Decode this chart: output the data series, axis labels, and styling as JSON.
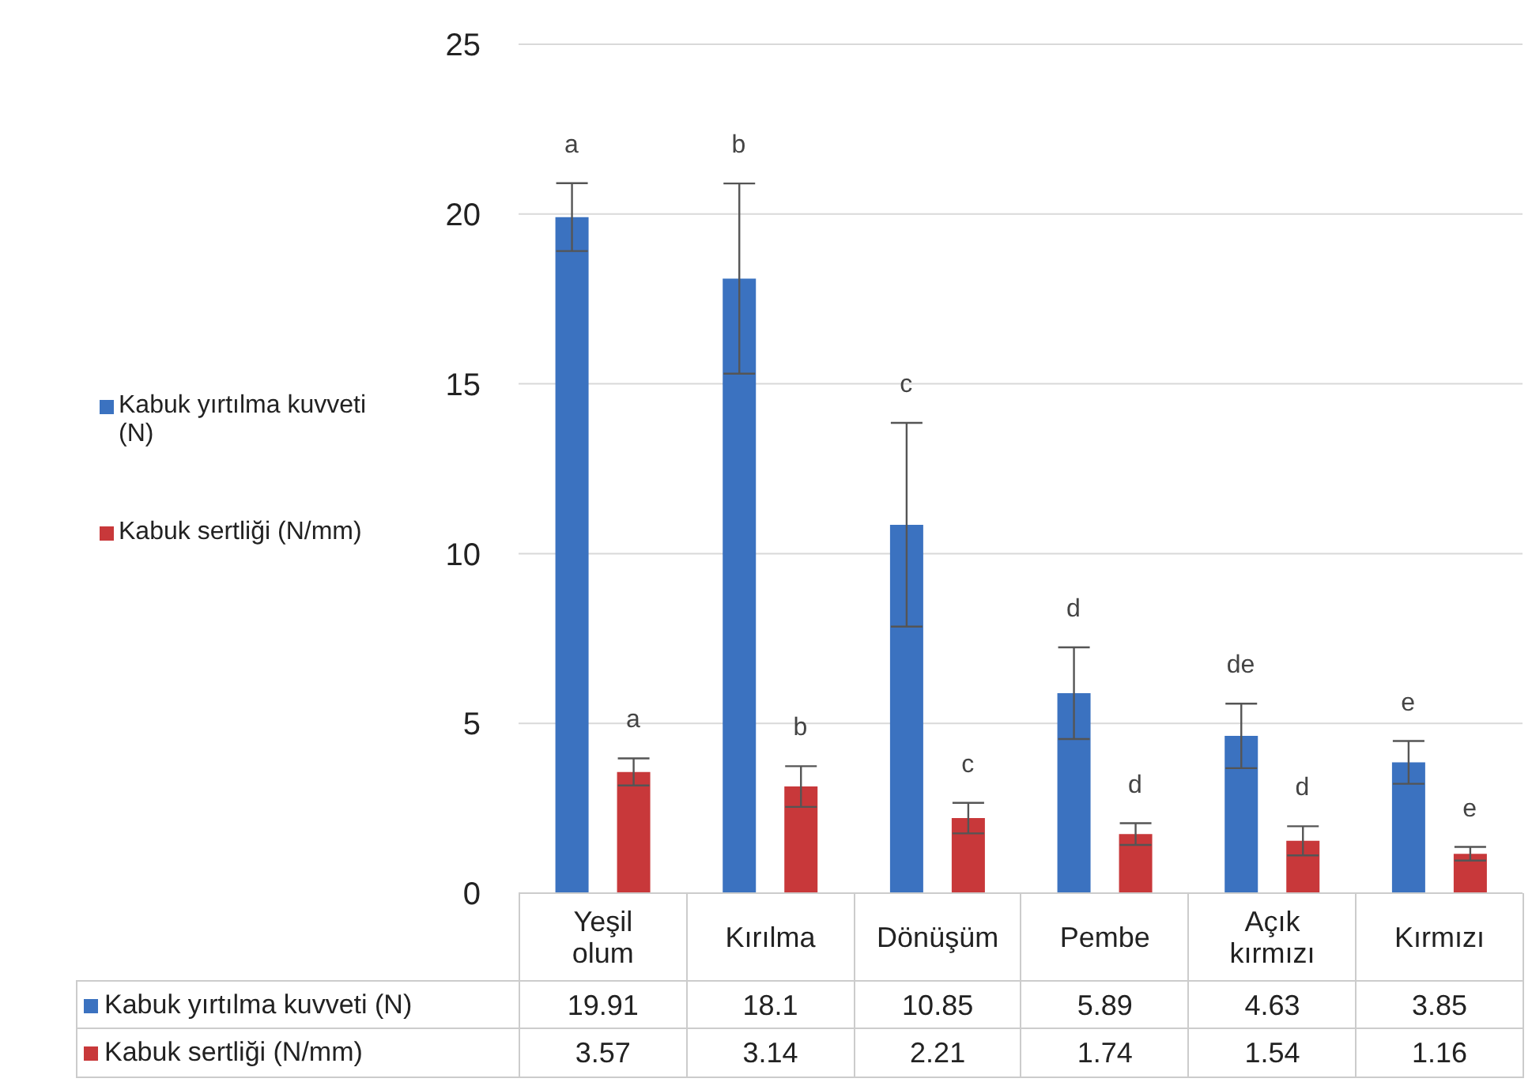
{
  "chart_data": {
    "type": "bar",
    "categories": [
      "Yeşil olum",
      "Kırılma",
      "Dönüşüm",
      "Pembe",
      "Açık kırmızı",
      "Kırmızı"
    ],
    "series": [
      {
        "name": "Kabuk yırtılma kuvveti (N)",
        "color": "#3b72c0",
        "values": [
          19.91,
          18.1,
          10.85,
          5.89,
          4.63,
          3.85
        ],
        "errors": [
          1.0,
          2.8,
          3.0,
          1.35,
          0.95,
          0.63
        ]
      },
      {
        "name": "Kabuk sertliği (N/mm)",
        "color": "#c8383a",
        "values": [
          3.57,
          3.14,
          2.21,
          1.74,
          1.54,
          1.16
        ],
        "errors": [
          0.4,
          0.6,
          0.45,
          0.32,
          0.43,
          0.2
        ]
      }
    ],
    "annotations": [
      "a",
      "b",
      "c",
      "d",
      "de",
      "e",
      "a",
      "b",
      "c",
      "d",
      "d",
      "e"
    ],
    "ylim": [
      0,
      25
    ],
    "yticks": [
      0,
      5,
      10,
      15,
      20,
      25
    ],
    "grid": "y",
    "legend": "left",
    "data_labels": true
  }
}
